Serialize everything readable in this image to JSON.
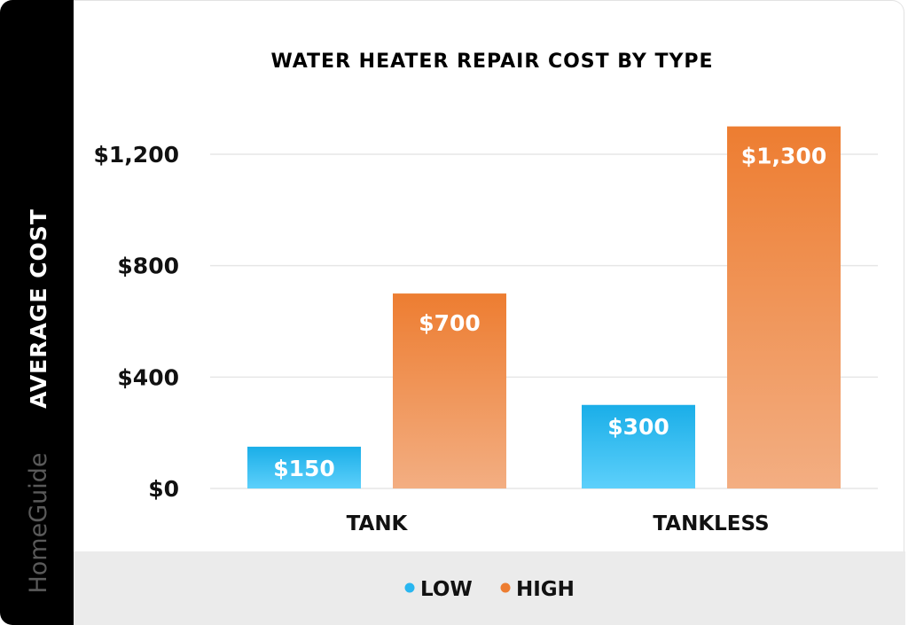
{
  "brand": "HomeGuide",
  "chart_data": {
    "type": "bar",
    "title": "WATER HEATER REPAIR COST BY TYPE",
    "xlabel": "",
    "ylabel": "AVERAGE COST",
    "categories": [
      "TANK",
      "TANKLESS"
    ],
    "series": [
      {
        "name": "LOW",
        "values": [
          150,
          300
        ],
        "labels": [
          "$150",
          "$300"
        ],
        "color": "#29b6f0"
      },
      {
        "name": "HIGH",
        "values": [
          700,
          1300
        ],
        "labels": [
          "$700",
          "$1,300"
        ],
        "color": "#ed7d31"
      }
    ],
    "ylim": [
      0,
      1300
    ],
    "yticks": [
      0,
      400,
      800,
      1200
    ],
    "ytick_labels": [
      "$0",
      "$400",
      "$800",
      "$1,200"
    ],
    "grid": true,
    "legend_position": "bottom"
  }
}
